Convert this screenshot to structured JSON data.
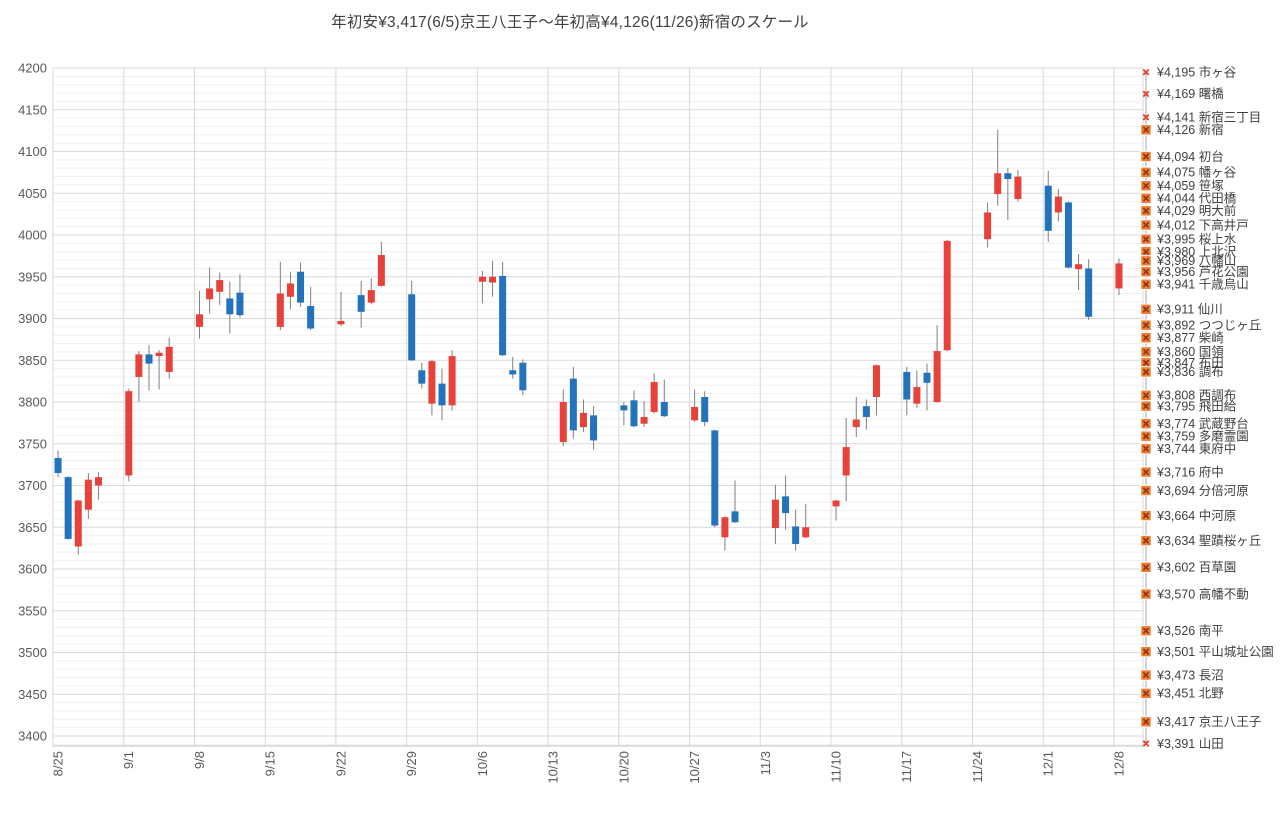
{
  "title": "年初安¥3,417(6/5)京王八王子～年初高¥4,126(11/26)新宿のスケール",
  "y_axis": {
    "tick_labels": [
      "4200",
      "4150",
      "4100",
      "4050",
      "4000",
      "3950",
      "3900",
      "3850",
      "3800",
      "3750",
      "3700",
      "3650",
      "3600",
      "3550",
      "3500",
      "3450",
      "3400"
    ]
  },
  "x_axis": {
    "tick_labels": [
      "8/25",
      "9/1",
      "9/8",
      "9/15",
      "9/22",
      "9/29",
      "10/6",
      "10/13",
      "10/20",
      "10/27",
      "11/3",
      "11/10",
      "11/17",
      "11/24",
      "12/1",
      "12/8"
    ]
  },
  "chart_data": {
    "type": "candlestick",
    "title": "年初安¥3,417(6/5)京王八王子～年初高¥4,126(11/26)新宿のスケール",
    "ylim": [
      3400,
      4200
    ],
    "y_major_step": 50,
    "y_minor_step": 10,
    "grid": "on",
    "up_color": "#e8413a",
    "down_color": "#2273bc",
    "wick_color": "#808080",
    "marker_box_fill": "#ed7d31",
    "marker_box_x_color": "#8a2f10",
    "marker_x_color": "#e8402f",
    "candles_format": [
      "date",
      "open",
      "high",
      "low",
      "close"
    ],
    "candles": [
      [
        "8/25",
        3733,
        3742,
        3710,
        3715
      ],
      [
        "8/26",
        3710,
        3711,
        3635,
        3636
      ],
      [
        "8/27",
        3627,
        3683,
        3617,
        3682
      ],
      [
        "8/28",
        3671,
        3715,
        3660,
        3707
      ],
      [
        "8/29",
        3700,
        3716,
        3683,
        3710
      ],
      [
        "9/1",
        3712,
        3816,
        3705,
        3813
      ],
      [
        "9/2",
        3830,
        3861,
        3800,
        3857
      ],
      [
        "9/3",
        3857,
        3868,
        3814,
        3846
      ],
      [
        "9/4",
        3855,
        3862,
        3815,
        3859
      ],
      [
        "9/5",
        3836,
        3877,
        3828,
        3866
      ],
      [
        "9/8",
        3890,
        3933,
        3876,
        3905
      ],
      [
        "9/9",
        3923,
        3961,
        3906,
        3936
      ],
      [
        "9/10",
        3932,
        3955,
        3916,
        3946
      ],
      [
        "9/11",
        3924,
        3944,
        3882,
        3905
      ],
      [
        "9/12",
        3931,
        3953,
        3901,
        3904
      ],
      [
        "9/16",
        3890,
        3968,
        3886,
        3930
      ],
      [
        "9/17",
        3926,
        3956,
        3911,
        3942
      ],
      [
        "9/18",
        3956,
        3967,
        3914,
        3919
      ],
      [
        "9/19",
        3915,
        3938,
        3886,
        3888
      ],
      [
        "9/22",
        3893,
        3932,
        3891,
        3897
      ],
      [
        "9/24",
        3928,
        3945,
        3889,
        3908
      ],
      [
        "9/25",
        3919,
        3948,
        3917,
        3934
      ],
      [
        "9/26",
        3939,
        3992,
        3938,
        3976
      ],
      [
        "9/29",
        3929,
        3945,
        3849,
        3850
      ],
      [
        "9/30",
        3838,
        3847,
        3816,
        3822
      ],
      [
        "10/1",
        3798,
        3850,
        3784,
        3849
      ],
      [
        "10/2",
        3822,
        3840,
        3778,
        3796
      ],
      [
        "10/3",
        3796,
        3862,
        3790,
        3855
      ],
      [
        "10/6",
        3944,
        3957,
        3918,
        3950
      ],
      [
        "10/7",
        3943,
        3969,
        3926,
        3950
      ],
      [
        "10/8",
        3951,
        3968,
        3855,
        3856
      ],
      [
        "10/9",
        3838,
        3854,
        3828,
        3833
      ],
      [
        "10/10",
        3847,
        3851,
        3808,
        3814
      ],
      [
        "10/14",
        3752,
        3815,
        3747,
        3800
      ],
      [
        "10/15",
        3828,
        3842,
        3756,
        3766
      ],
      [
        "10/16",
        3770,
        3803,
        3764,
        3787
      ],
      [
        "10/17",
        3784,
        3795,
        3743,
        3754
      ],
      [
        "10/20",
        3796,
        3800,
        3772,
        3790
      ],
      [
        "10/21",
        3802,
        3814,
        3770,
        3771
      ],
      [
        "10/22",
        3774,
        3801,
        3770,
        3782
      ],
      [
        "10/23",
        3788,
        3834,
        3786,
        3824
      ],
      [
        "10/24",
        3800,
        3827,
        3782,
        3783
      ],
      [
        "10/27",
        3778,
        3815,
        3776,
        3794
      ],
      [
        "10/28",
        3806,
        3813,
        3771,
        3776
      ],
      [
        "10/29",
        3766,
        3767,
        3650,
        3652
      ],
      [
        "10/30",
        3638,
        3663,
        3622,
        3662
      ],
      [
        "10/31",
        3669,
        3706,
        3655,
        3656
      ],
      [
        "11/4",
        3649,
        3701,
        3630,
        3683
      ],
      [
        "11/5",
        3687,
        3712,
        3647,
        3667
      ],
      [
        "11/6",
        3651,
        3671,
        3622,
        3630
      ],
      [
        "11/7",
        3638,
        3678,
        3637,
        3650
      ],
      [
        "11/10",
        3675,
        3683,
        3658,
        3682
      ],
      [
        "11/11",
        3712,
        3781,
        3681,
        3746
      ],
      [
        "11/12",
        3770,
        3806,
        3758,
        3779
      ],
      [
        "11/13",
        3795,
        3803,
        3767,
        3782
      ],
      [
        "11/14",
        3806,
        3845,
        3784,
        3844
      ],
      [
        "11/17",
        3836,
        3842,
        3784,
        3803
      ],
      [
        "11/18",
        3798,
        3838,
        3793,
        3818
      ],
      [
        "11/19",
        3835,
        3846,
        3790,
        3823
      ],
      [
        "11/20",
        3800,
        3892,
        3799,
        3861
      ],
      [
        "11/21",
        3862,
        3994,
        3861,
        3993
      ],
      [
        "11/25",
        3995,
        4039,
        3985,
        4027
      ],
      [
        "11/26",
        4049,
        4126,
        4035,
        4074
      ],
      [
        "11/27",
        4074,
        4080,
        4018,
        4067
      ],
      [
        "11/28",
        4043,
        4078,
        4040,
        4070
      ],
      [
        "12/1",
        4059,
        4077,
        3992,
        4005
      ],
      [
        "12/2",
        4027,
        4055,
        4016,
        4046
      ],
      [
        "12/3",
        4039,
        4040,
        3960,
        3961
      ],
      [
        "12/4",
        3959,
        3977,
        3934,
        3965
      ],
      [
        "12/5",
        3960,
        3971,
        3898,
        3902
      ],
      [
        "12/8",
        3936,
        3972,
        3928,
        3966
      ]
    ],
    "stations": [
      {
        "price": 4195,
        "name": "市ヶ谷",
        "marker": "x"
      },
      {
        "price": 4169,
        "name": "曙橋",
        "marker": "x"
      },
      {
        "price": 4141,
        "name": "新宿三丁目",
        "marker": "x"
      },
      {
        "price": 4126,
        "name": "新宿",
        "marker": "box"
      },
      {
        "price": 4094,
        "name": "初台",
        "marker": "box"
      },
      {
        "price": 4075,
        "name": "幡ヶ谷",
        "marker": "box"
      },
      {
        "price": 4059,
        "name": "笹塚",
        "marker": "box"
      },
      {
        "price": 4044,
        "name": "代田橋",
        "marker": "box"
      },
      {
        "price": 4029,
        "name": "明大前",
        "marker": "box"
      },
      {
        "price": 4012,
        "name": "下高井戸",
        "marker": "box"
      },
      {
        "price": 3995,
        "name": "桜上水",
        "marker": "box"
      },
      {
        "price": 3980,
        "name": "上北沢",
        "marker": "box"
      },
      {
        "price": 3969,
        "name": "八幡山",
        "marker": "box"
      },
      {
        "price": 3956,
        "name": "芦花公園",
        "marker": "box"
      },
      {
        "price": 3941,
        "name": "千歳烏山",
        "marker": "box"
      },
      {
        "price": 3911,
        "name": "仙川",
        "marker": "box"
      },
      {
        "price": 3892,
        "name": "つつじヶ丘",
        "marker": "box"
      },
      {
        "price": 3877,
        "name": "柴崎",
        "marker": "box"
      },
      {
        "price": 3860,
        "name": "国領",
        "marker": "box"
      },
      {
        "price": 3847,
        "name": "布田",
        "marker": "box"
      },
      {
        "price": 3836,
        "name": "調布",
        "marker": "box"
      },
      {
        "price": 3808,
        "name": "西調布",
        "marker": "box"
      },
      {
        "price": 3795,
        "name": "飛田給",
        "marker": "box"
      },
      {
        "price": 3774,
        "name": "武蔵野台",
        "marker": "box"
      },
      {
        "price": 3759,
        "name": "多磨霊園",
        "marker": "box"
      },
      {
        "price": 3744,
        "name": "東府中",
        "marker": "box"
      },
      {
        "price": 3716,
        "name": "府中",
        "marker": "box"
      },
      {
        "price": 3694,
        "name": "分倍河原",
        "marker": "box"
      },
      {
        "price": 3664,
        "name": "中河原",
        "marker": "box"
      },
      {
        "price": 3634,
        "name": "聖蹟桜ヶ丘",
        "marker": "box"
      },
      {
        "price": 3602,
        "name": "百草園",
        "marker": "box"
      },
      {
        "price": 3570,
        "name": "高幡不動",
        "marker": "box"
      },
      {
        "price": 3526,
        "name": "南平",
        "marker": "box"
      },
      {
        "price": 3501,
        "name": "平山城址公園",
        "marker": "box"
      },
      {
        "price": 3473,
        "name": "長沼",
        "marker": "box"
      },
      {
        "price": 3451,
        "name": "北野",
        "marker": "box"
      },
      {
        "price": 3417,
        "name": "京王八王子",
        "marker": "box"
      },
      {
        "price": 3391,
        "name": "山田",
        "marker": "x"
      }
    ]
  }
}
